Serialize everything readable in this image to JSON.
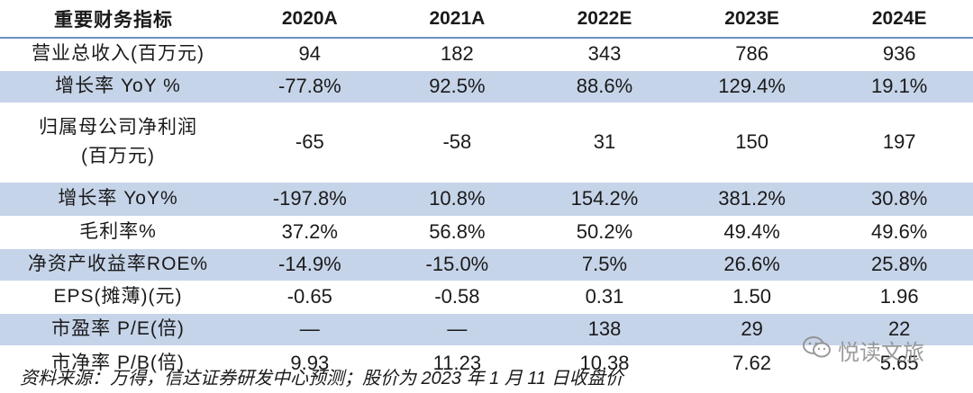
{
  "table": {
    "headers": [
      "重要财务指标",
      "2020A",
      "2021A",
      "2022E",
      "2023E",
      "2024E"
    ],
    "rows": [
      {
        "label": [
          "营业总收入(百万元)"
        ],
        "values": [
          "94",
          "182",
          "343",
          "786",
          "936"
        ],
        "shaded": false
      },
      {
        "label": [
          "增长率 YoY %"
        ],
        "values": [
          "-77.8%",
          "92.5%",
          "88.6%",
          "129.4%",
          "19.1%"
        ],
        "shaded": true
      },
      {
        "label": [
          "归属母公司净利润",
          "(百万元)"
        ],
        "values": [
          "-65",
          "-58",
          "31",
          "150",
          "197"
        ],
        "shaded": false
      },
      {
        "label": [
          "增长率 YoY%"
        ],
        "values": [
          "-197.8%",
          "10.8%",
          "154.2%",
          "381.2%",
          "30.8%"
        ],
        "shaded": true
      },
      {
        "label": [
          "毛利率%"
        ],
        "values": [
          "37.2%",
          "56.8%",
          "50.2%",
          "49.4%",
          "49.6%"
        ],
        "shaded": false
      },
      {
        "label": [
          "净资产收益率ROE%"
        ],
        "values": [
          "-14.9%",
          "-15.0%",
          "7.5%",
          "26.6%",
          "25.8%"
        ],
        "shaded": true
      },
      {
        "label": [
          "EPS(摊薄)(元)"
        ],
        "values": [
          "-0.65",
          "-0.58",
          "0.31",
          "1.50",
          "1.96"
        ],
        "shaded": false
      },
      {
        "label": [
          "市盈率 P/E(倍)"
        ],
        "values": [
          "—",
          "—",
          "138",
          "29",
          "22"
        ],
        "shaded": true
      },
      {
        "label": [
          "市净率 P/B(倍)"
        ],
        "values": [
          "9.93",
          "11.23",
          "10.38",
          "7.62",
          "5.65"
        ],
        "shaded": false
      }
    ]
  },
  "footer": {
    "note": "资料来源：万得，信达证券研发中心预测；股价为 2023 年 1 月 11 日收盘价"
  },
  "watermark": {
    "text": "悦读文旅",
    "icon": "wechat-icon"
  }
}
